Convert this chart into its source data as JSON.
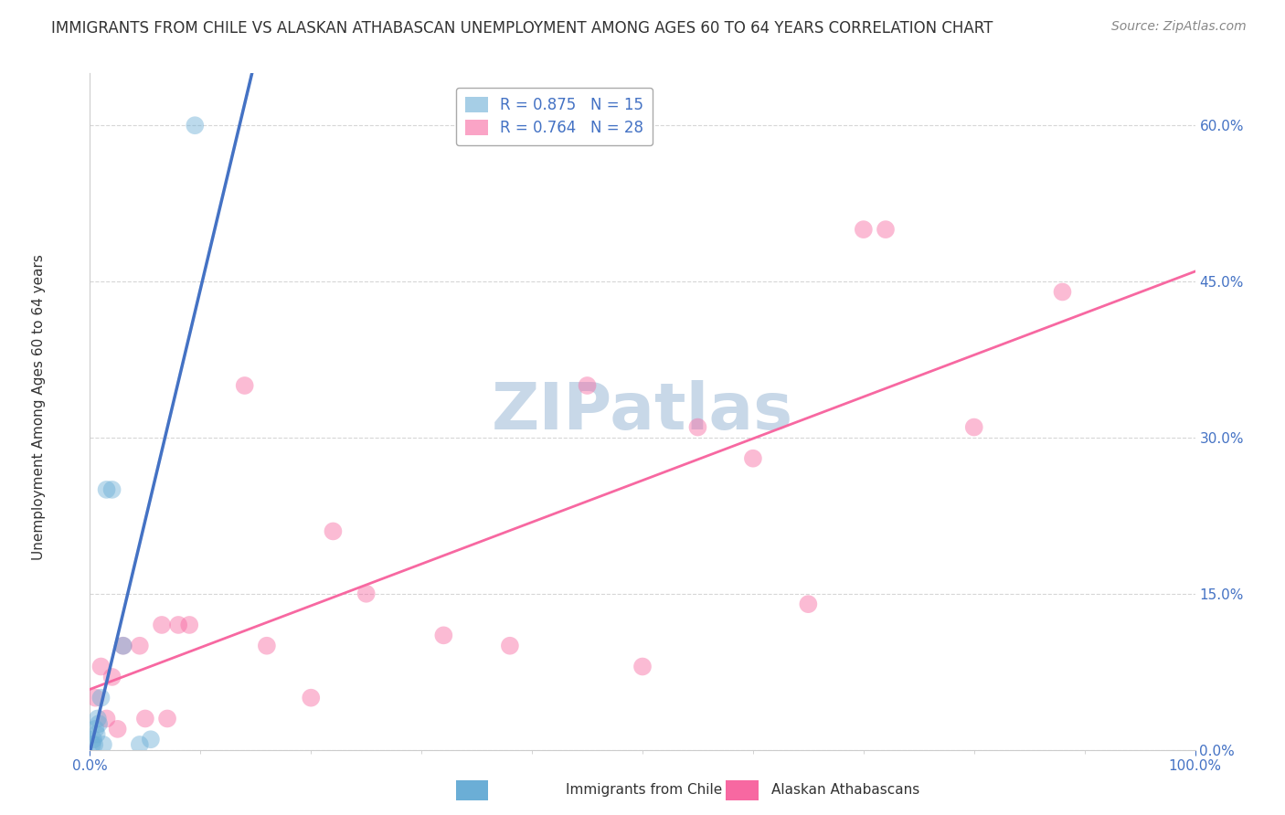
{
  "title": "IMMIGRANTS FROM CHILE VS ALASKAN ATHABASCAN UNEMPLOYMENT AMONG AGES 60 TO 64 YEARS CORRELATION CHART",
  "source": "Source: ZipAtlas.com",
  "ylabel": "Unemployment Among Ages 60 to 64 years",
  "watermark": "ZIPatlas",
  "legend_entries": [
    {
      "label": "Immigrants from Chile",
      "R": 0.875,
      "N": 15,
      "color": "#6baed6"
    },
    {
      "label": "Alaskan Athabascans",
      "R": 0.764,
      "N": 28,
      "color": "#f768a1"
    }
  ],
  "blue_points_x": [
    0.2,
    0.3,
    0.4,
    0.5,
    0.6,
    0.7,
    0.8,
    1.0,
    1.2,
    1.5,
    2.0,
    3.0,
    4.5,
    5.5,
    9.5
  ],
  "blue_points_y": [
    0.5,
    1.0,
    0.5,
    2.0,
    1.5,
    3.0,
    2.5,
    5.0,
    0.5,
    25.0,
    25.0,
    10.0,
    0.5,
    1.0,
    60.0
  ],
  "pink_points_x": [
    0.5,
    1.0,
    1.5,
    2.0,
    2.5,
    3.0,
    4.5,
    5.0,
    6.5,
    7.0,
    8.0,
    9.0,
    14.0,
    16.0,
    20.0,
    22.0,
    25.0,
    32.0,
    38.0,
    45.0,
    50.0,
    55.0,
    60.0,
    65.0,
    70.0,
    72.0,
    80.0,
    88.0
  ],
  "pink_points_y": [
    5.0,
    8.0,
    3.0,
    7.0,
    2.0,
    10.0,
    10.0,
    3.0,
    12.0,
    3.0,
    12.0,
    12.0,
    35.0,
    10.0,
    5.0,
    21.0,
    15.0,
    11.0,
    10.0,
    35.0,
    8.0,
    31.0,
    28.0,
    14.0,
    50.0,
    50.0,
    31.0,
    44.0
  ],
  "xlim": [
    0,
    100
  ],
  "ylim": [
    0,
    65
  ],
  "yticks": [
    0,
    15,
    30,
    45,
    60
  ],
  "xtick_minor_count": 9,
  "grid_color": "#cccccc",
  "title_color": "#333333",
  "tick_label_color": "#4472c4",
  "background_color": "#ffffff",
  "blue_line_color": "#4472c4",
  "pink_line_color": "#f768a1",
  "watermark_color": "#c8d8e8",
  "title_fontsize": 12,
  "axis_label_fontsize": 11,
  "tick_fontsize": 11,
  "legend_fontsize": 12,
  "source_fontsize": 10
}
